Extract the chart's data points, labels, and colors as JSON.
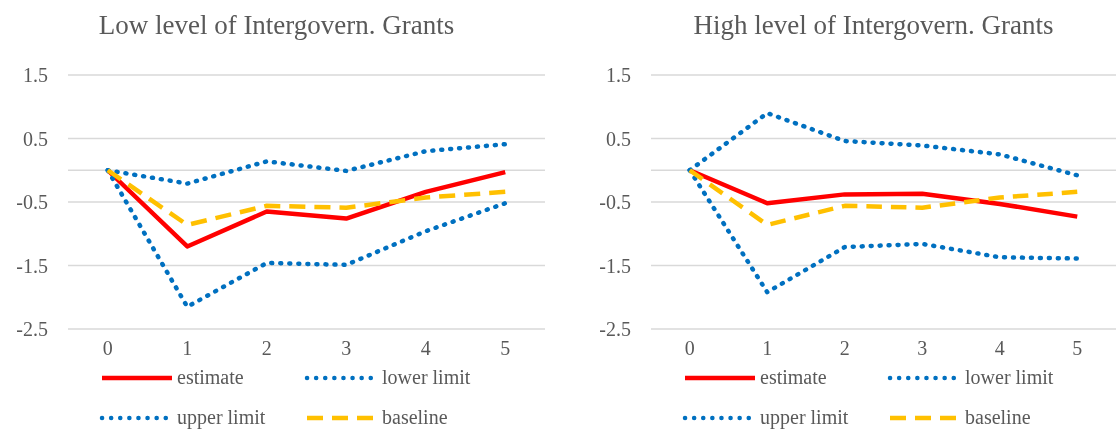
{
  "chart_data": [
    {
      "type": "line",
      "title": "Low level of Intergovern. Grants",
      "categories": [
        "0",
        "1",
        "2",
        "3",
        "4",
        "5"
      ],
      "ylim": [
        -2.5,
        1.5
      ],
      "yticks": [
        -2.5,
        -1.5,
        -0.5,
        0.5,
        1.5
      ],
      "grid": "y",
      "legend": "bottom",
      "series": [
        {
          "name": "estimate",
          "color": "#ff0000",
          "line_style": "solid",
          "values": [
            0,
            -1.2,
            -0.65,
            -0.76,
            -0.34,
            -0.03
          ]
        },
        {
          "name": "lower limit",
          "color": "#0070c0",
          "line_style": "dotted",
          "values": [
            0,
            -2.15,
            -1.46,
            -1.49,
            -0.96,
            -0.52
          ]
        },
        {
          "name": "upper limit",
          "color": "#0070c0",
          "line_style": "dotted",
          "values": [
            0,
            -0.21,
            0.14,
            -0.01,
            0.3,
            0.41
          ]
        },
        {
          "name": "baseline",
          "color": "#ffc000",
          "line_style": "dashed",
          "values": [
            0,
            -0.86,
            -0.56,
            -0.59,
            -0.43,
            -0.34
          ]
        }
      ]
    },
    {
      "type": "line",
      "title": "High level of Intergovern. Grants",
      "categories": [
        "0",
        "1",
        "2",
        "3",
        "4",
        "5"
      ],
      "ylim": [
        -2.5,
        1.5
      ],
      "yticks": [
        -2.5,
        -1.5,
        -0.5,
        0.5,
        1.5
      ],
      "grid": "y",
      "legend": "bottom",
      "series": [
        {
          "name": "estimate",
          "color": "#ff0000",
          "line_style": "solid",
          "values": [
            0,
            -0.52,
            -0.38,
            -0.37,
            -0.53,
            -0.73
          ]
        },
        {
          "name": "lower limit",
          "color": "#0070c0",
          "line_style": "dotted",
          "values": [
            0,
            -1.92,
            -1.21,
            -1.16,
            -1.37,
            -1.39
          ]
        },
        {
          "name": "upper limit",
          "color": "#0070c0",
          "line_style": "dotted",
          "values": [
            0,
            0.9,
            0.46,
            0.39,
            0.25,
            -0.08
          ]
        },
        {
          "name": "baseline",
          "color": "#ffc000",
          "line_style": "dashed",
          "values": [
            0,
            -0.86,
            -0.56,
            -0.59,
            -0.43,
            -0.34
          ]
        }
      ]
    }
  ]
}
